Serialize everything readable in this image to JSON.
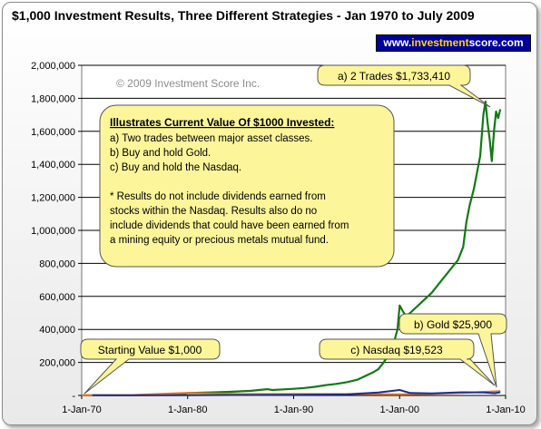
{
  "chart_data": {
    "type": "line",
    "title": "$1,000 Investment Results, Three Different Strategies - Jan 1970 to July 2009",
    "xlabel": "",
    "ylabel": "",
    "xlim": [
      1970.0,
      2010.0
    ],
    "ylim": [
      0,
      2000000
    ],
    "x_tick_labels": [
      "1-Jan-70",
      "1-Jan-80",
      "1-Jan-90",
      "1-Jan-00",
      "1-Jan-10"
    ],
    "x_tick_values": [
      1970,
      1980,
      1990,
      2000,
      2010
    ],
    "y_ticks": [
      0,
      200000,
      400000,
      600000,
      800000,
      1000000,
      1200000,
      1400000,
      1600000,
      1800000,
      2000000
    ],
    "y_tick_labels": [
      "-",
      "200,000",
      "400,000",
      "600,000",
      "800,000",
      "1,000,000",
      "1,200,000",
      "1,400,000",
      "1,600,000",
      "1,800,000",
      "2,000,000"
    ],
    "grid": true,
    "legend": "none",
    "series": [
      {
        "color": "#127a12",
        "x": [
          1970.0,
          1972.0,
          1974.0,
          1976.0,
          1978.0,
          1979.5,
          1980.0,
          1982.0,
          1984.0,
          1986.0,
          1987.5,
          1988.0,
          1990.0,
          1991.0,
          1992.0,
          1993.0,
          1994.0,
          1995.0,
          1996.0,
          1996.5,
          1997.0,
          1997.5,
          1998.0,
          1998.5,
          1999.0,
          1999.5,
          1999.8,
          2000.0,
          2000.3,
          2000.6,
          2001.0,
          2001.5,
          2002.0,
          2002.5,
          2003.0,
          2003.5,
          2004.0,
          2004.5,
          2005.0,
          2005.5,
          2006.0,
          2006.3,
          2006.6,
          2007.0,
          2007.3,
          2007.6,
          2007.9,
          2008.1,
          2008.3,
          2008.5,
          2008.7,
          2008.9,
          2009.1,
          2009.3,
          2009.5
        ],
        "values": [
          1000,
          1200,
          1800,
          2500,
          4000,
          8000,
          15000,
          18000,
          22000,
          28000,
          38000,
          33000,
          40000,
          45000,
          52000,
          62000,
          70000,
          80000,
          95000,
          110000,
          125000,
          140000,
          160000,
          200000,
          250000,
          330000,
          400000,
          545000,
          510000,
          480000,
          500000,
          530000,
          560000,
          590000,
          620000,
          660000,
          700000,
          740000,
          780000,
          820000,
          900000,
          1050000,
          1150000,
          1250000,
          1350000,
          1450000,
          1700000,
          1780000,
          1650000,
          1550000,
          1420000,
          1600000,
          1720000,
          1680000,
          1733410
        ]
      },
      {
        "color": "#e0782a",
        "x": [
          1970.0,
          1975.0,
          1980.0,
          1985.0,
          1990.0,
          1995.0,
          2000.0,
          2003.0,
          2006.0,
          2008.0,
          2009.5
        ],
        "values": [
          1000,
          3500,
          16000,
          8000,
          9000,
          8000,
          7000,
          9500,
          16000,
          22000,
          25900
        ]
      },
      {
        "color": "#1f2f8a",
        "x": [
          1971.0,
          1975.0,
          1980.0,
          1985.0,
          1990.0,
          1995.0,
          1998.0,
          2000.0,
          2001.0,
          2003.0,
          2006.0,
          2008.0,
          2009.0,
          2009.5
        ],
        "values": [
          1000,
          800,
          1500,
          3000,
          4500,
          7000,
          18000,
          33000,
          15000,
          12000,
          19000,
          18000,
          13000,
          19523
        ]
      }
    ],
    "annotations": {
      "copyright": "© 2009 Investment Score Inc.",
      "box_heading": "Illustrates Current Value Of $1000 Invested:",
      "box_lines": [
        "a)  Two trades between major asset classes.",
        "b)  Buy and hold Gold.",
        "c)  Buy and hold the Nasdaq.",
        "",
        "* Results do not include dividends earned from",
        "stocks within the Nasdaq.  Results also do no",
        "include dividends that could have been earned from",
        "a mining equity or precious metals mutual fund."
      ],
      "callout_a": "a) 2 Trades $1,733,410",
      "callout_b": "b) Gold $25,900",
      "callout_c": "c) Nasdaq $19,523",
      "callout_start": "Starting Value $1,000"
    }
  },
  "brand": {
    "prefix": "www.",
    "middle": "investment",
    "suffix": "score.com"
  }
}
